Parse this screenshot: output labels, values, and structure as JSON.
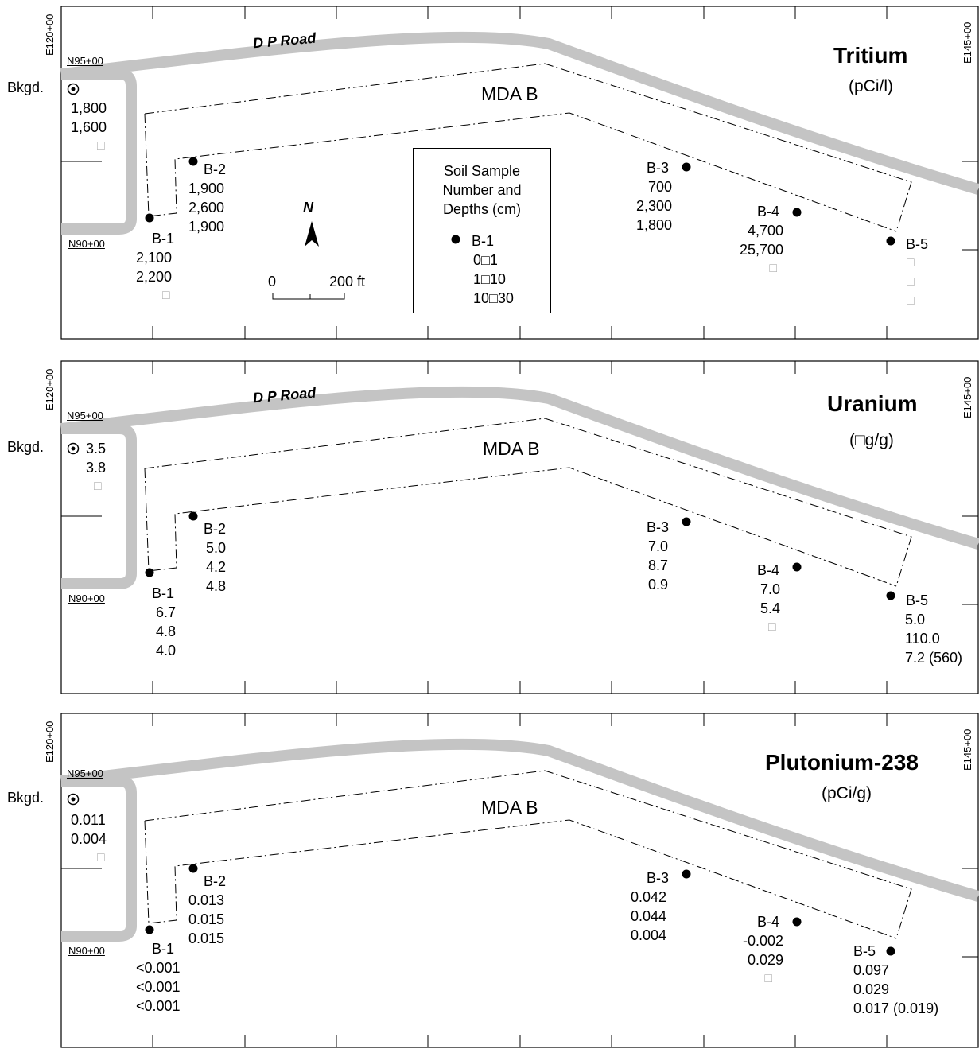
{
  "grid_labels": {
    "e_left": "E120+00",
    "e_right": "E145+00",
    "n_top": "N95+00",
    "n_bottom": "N90+00"
  },
  "road_label": "D P Road",
  "area_label": "MDA B",
  "bkgd_label": "Bkgd.",
  "north_label": "N",
  "scale": {
    "zero": "0",
    "end": "200 ft"
  },
  "legend": {
    "title_lines": [
      "Soil Sample",
      "Number and",
      "Depths (cm)"
    ],
    "sample": "B-1",
    "depths": [
      "0□1",
      "1□10",
      "10□30"
    ]
  },
  "missing_glyph": "□",
  "colors": {
    "road": "#c4c4c4",
    "ink": "#000000",
    "missing": "#b0b0b0"
  },
  "panels": [
    {
      "title": "Tritium",
      "unit": "(pCi/l)",
      "bkgd": [
        "1,800",
        "1,600",
        "□"
      ],
      "samples": [
        {
          "id": "B-1",
          "values": [
            "2,100",
            "2,200",
            "□"
          ]
        },
        {
          "id": "B-2",
          "values": [
            "1,900",
            "2,600",
            "1,900"
          ]
        },
        {
          "id": "B-3",
          "values": [
            "700",
            "2,300",
            "1,800"
          ]
        },
        {
          "id": "B-4",
          "values": [
            "4,700",
            "25,700",
            "□"
          ]
        },
        {
          "id": "B-5",
          "values": [
            "□",
            "□",
            "□"
          ]
        }
      ]
    },
    {
      "title": "Uranium",
      "unit": "(□g/g)",
      "bkgd": [
        "3.5",
        "3.8",
        "□"
      ],
      "samples": [
        {
          "id": "B-1",
          "values": [
            "6.7",
            "4.8",
            "4.0"
          ]
        },
        {
          "id": "B-2",
          "values": [
            "5.0",
            "4.2",
            "4.8"
          ]
        },
        {
          "id": "B-3",
          "values": [
            "7.0",
            "8.7",
            "0.9"
          ]
        },
        {
          "id": "B-4",
          "values": [
            "7.0",
            "5.4",
            "□"
          ]
        },
        {
          "id": "B-5",
          "values": [
            "5.0",
            "110.0",
            "7.2 (560)"
          ]
        }
      ]
    },
    {
      "title": "Plutonium-238",
      "unit": "(pCi/g)",
      "bkgd": [
        "0.011",
        "0.004",
        "□"
      ],
      "samples": [
        {
          "id": "B-1",
          "values": [
            "<0.001",
            "<0.001",
            "<0.001"
          ]
        },
        {
          "id": "B-2",
          "values": [
            "0.013",
            "0.015",
            "0.015"
          ]
        },
        {
          "id": "B-3",
          "values": [
            "0.042",
            "0.044",
            "0.004"
          ]
        },
        {
          "id": "B-4",
          "values": [
            "-0.002",
            "0.029",
            "□"
          ]
        },
        {
          "id": "B-5",
          "values": [
            "0.097",
            "0.029",
            "0.017 (0.019)"
          ]
        }
      ]
    }
  ]
}
